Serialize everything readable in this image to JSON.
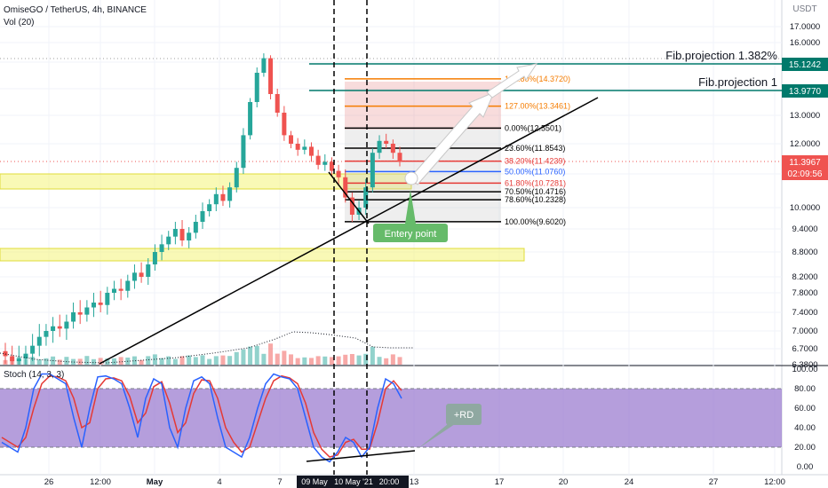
{
  "header": {
    "title": "OmiseGO / TetherUS, 4h, BINANCE",
    "volume_label": "Vol (20)",
    "stoch_label": "Stoch (14, 3, 3)",
    "currency": "USDT"
  },
  "price_axis": {
    "ticks": [
      "17.0000",
      "16.0000",
      "15.0000",
      "14.0000",
      "13.0000",
      "12.0000",
      "11.0000",
      "10.0000",
      "9.4000",
      "8.8000",
      "8.2000",
      "7.8000",
      "7.4000",
      "7.0000",
      "6.7000",
      "6.3800"
    ]
  },
  "stoch_axis": {
    "ticks": [
      "100.00",
      "80.00",
      "60.00",
      "40.00",
      "20.00",
      "0.00"
    ]
  },
  "time_axis": {
    "ticks": [
      "26",
      "12:00",
      "May",
      "4",
      "7",
      "13",
      "17",
      "20",
      "24",
      "27",
      "12:00"
    ],
    "highlight_labels": [
      "09 May",
      "10 May '21",
      "20:00"
    ]
  },
  "price_tags": {
    "fib_1382": "15.1242",
    "fib_1": "13.9770",
    "last_price": "11.3967",
    "countdown": "02:09:56"
  },
  "fib_levels": [
    {
      "label": "161.80%(14.3720)",
      "price": 14.372,
      "color": "#f57c00"
    },
    {
      "label": "127.00%(13.3461)",
      "price": 13.3461,
      "color": "#f57c00"
    },
    {
      "label": "0.00%(12.5501)",
      "price": 12.5501,
      "color": "#000000"
    },
    {
      "label": "23.60%(11.8543)",
      "price": 11.8543,
      "color": "#000000"
    },
    {
      "label": "38.20%(11.4239)",
      "price": 11.4239,
      "color": "#e53935"
    },
    {
      "label": "50.00%(11.0760)",
      "price": 11.076,
      "color": "#2962ff"
    },
    {
      "label": "61.80%(10.7281)",
      "price": 10.7281,
      "color": "#e53935"
    },
    {
      "label": "70.50%(10.4716)",
      "price": 10.4716,
      "color": "#000000"
    },
    {
      "label": "78.60%(10.2328)",
      "price": 10.2328,
      "color": "#000000"
    },
    {
      "label": "100.00%(9.6020)",
      "price": 9.602,
      "color": "#000000"
    }
  ],
  "annotations": {
    "fib_projection_1382": "Fib.projection 1.382%",
    "fib_projection_1": "Fib.projection 1",
    "entry_point": "Entery point",
    "rd": "+RD"
  },
  "colors": {
    "up": "#26a69a",
    "down": "#ef5350",
    "stoch_k": "#2962ff",
    "stoch_d": "#e53935",
    "stoch_band": "#9575cd",
    "zone": "#f4f47a",
    "proj_line": "#00796b"
  },
  "chart_data": {
    "type": "candlestick",
    "symbol": "OMGUSDT",
    "timeframe": "4h",
    "x_range": [
      "2021-04-24",
      "2021-05-29"
    ],
    "y_range": [
      6.38,
      17.6
    ],
    "notes": "OHLC series approximated from visual; price rallies from ~6.5 to high ~15.4 on May 7, pulls back to ~9.6 on May 10, rebounds to ~12.4",
    "candles_close": [
      6.55,
      6.45,
      6.5,
      6.6,
      6.75,
      6.9,
      7.0,
      7.1,
      7.05,
      7.2,
      7.4,
      7.35,
      7.5,
      7.6,
      7.55,
      7.8,
      7.9,
      7.85,
      8.1,
      8.3,
      8.2,
      8.5,
      8.8,
      9.0,
      9.2,
      9.4,
      9.1,
      9.3,
      9.6,
      9.9,
      10.1,
      10.4,
      10.2,
      10.6,
      11.2,
      12.3,
      13.5,
      14.6,
      15.2,
      13.8,
      13.1,
      12.3,
      12.0,
      11.8,
      11.9,
      11.6,
      11.3,
      11.4,
      11.1,
      10.9,
      10.3,
      9.8,
      10.0,
      10.6,
      11.7,
      12.1,
      12.0,
      11.7,
      11.4
    ],
    "stoch_k": [
      25,
      20,
      15,
      40,
      80,
      95,
      95,
      90,
      85,
      50,
      20,
      60,
      92,
      93,
      90,
      85,
      60,
      30,
      70,
      90,
      85,
      40,
      20,
      60,
      88,
      92,
      85,
      50,
      20,
      15,
      10,
      30,
      60,
      85,
      95,
      92,
      90,
      80,
      50,
      20,
      10,
      5,
      15,
      30,
      25,
      10,
      20,
      60,
      90,
      85,
      70
    ],
    "stoch_d": [
      30,
      25,
      20,
      30,
      60,
      85,
      93,
      92,
      88,
      70,
      40,
      45,
      80,
      90,
      91,
      88,
      72,
      45,
      55,
      82,
      87,
      65,
      35,
      45,
      75,
      89,
      88,
      70,
      40,
      25,
      15,
      20,
      45,
      70,
      88,
      93,
      91,
      85,
      65,
      35,
      18,
      10,
      12,
      25,
      28,
      18,
      18,
      45,
      80,
      88,
      78
    ],
    "fib_projection_levels": [
      15.1242,
      13.977
    ]
  }
}
